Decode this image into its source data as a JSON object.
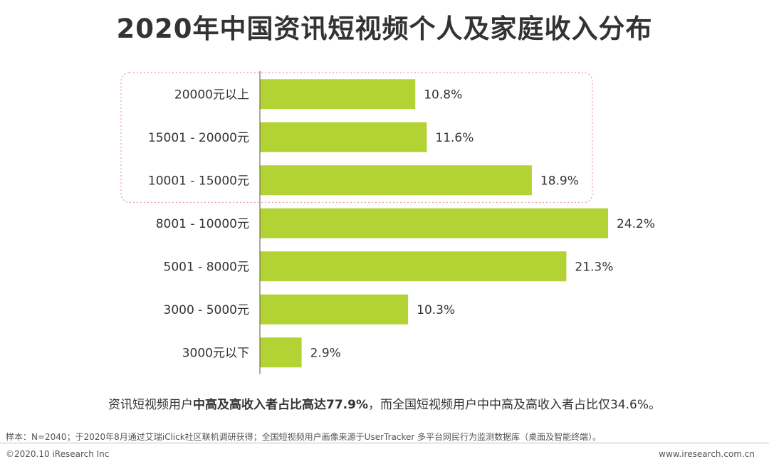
{
  "page": {
    "title": "2020年中国资讯短视频个人及家庭收入分布",
    "note_normal_1": "资讯短视频用户",
    "note_bold": "中高及高收入者占比高达77.9%",
    "note_normal_2": "，而全国短视频用户中中高及高收入者占比仅34.6%。",
    "source": "样本：N=2040；于2020年8月通过艾瑞iClick社区联机调研获得；全国短视频用户画像来源于UserTracker 多平台网民行为监测数据库（桌面及智能终端）。",
    "copyright": "©2020.10 iResearch Inc",
    "website": "www.iresearch.com.cn"
  },
  "colors": {
    "bar": "#b3d335",
    "axis": "#555555",
    "highlight_border": "#e8a0a0"
  },
  "chart_data": {
    "type": "bar",
    "orientation": "horizontal",
    "categories": [
      "20000元以上",
      "15001 - 20000元",
      "10001 - 15000元",
      "8001 - 10000元",
      "5001 - 8000元",
      "3000 - 5000元",
      "3000元以下"
    ],
    "values": [
      10.8,
      11.6,
      18.9,
      24.2,
      21.3,
      10.3,
      2.9
    ],
    "value_labels": [
      "10.8%",
      "11.6%",
      "18.9%",
      "24.2%",
      "21.3%",
      "10.3%",
      "2.9%"
    ],
    "unit": "%",
    "highlighted_categories": [
      "20000元以上",
      "15001 - 20000元",
      "10001 - 15000元"
    ],
    "xlim": [
      0,
      24.2
    ],
    "grid": false,
    "legend": "none"
  }
}
